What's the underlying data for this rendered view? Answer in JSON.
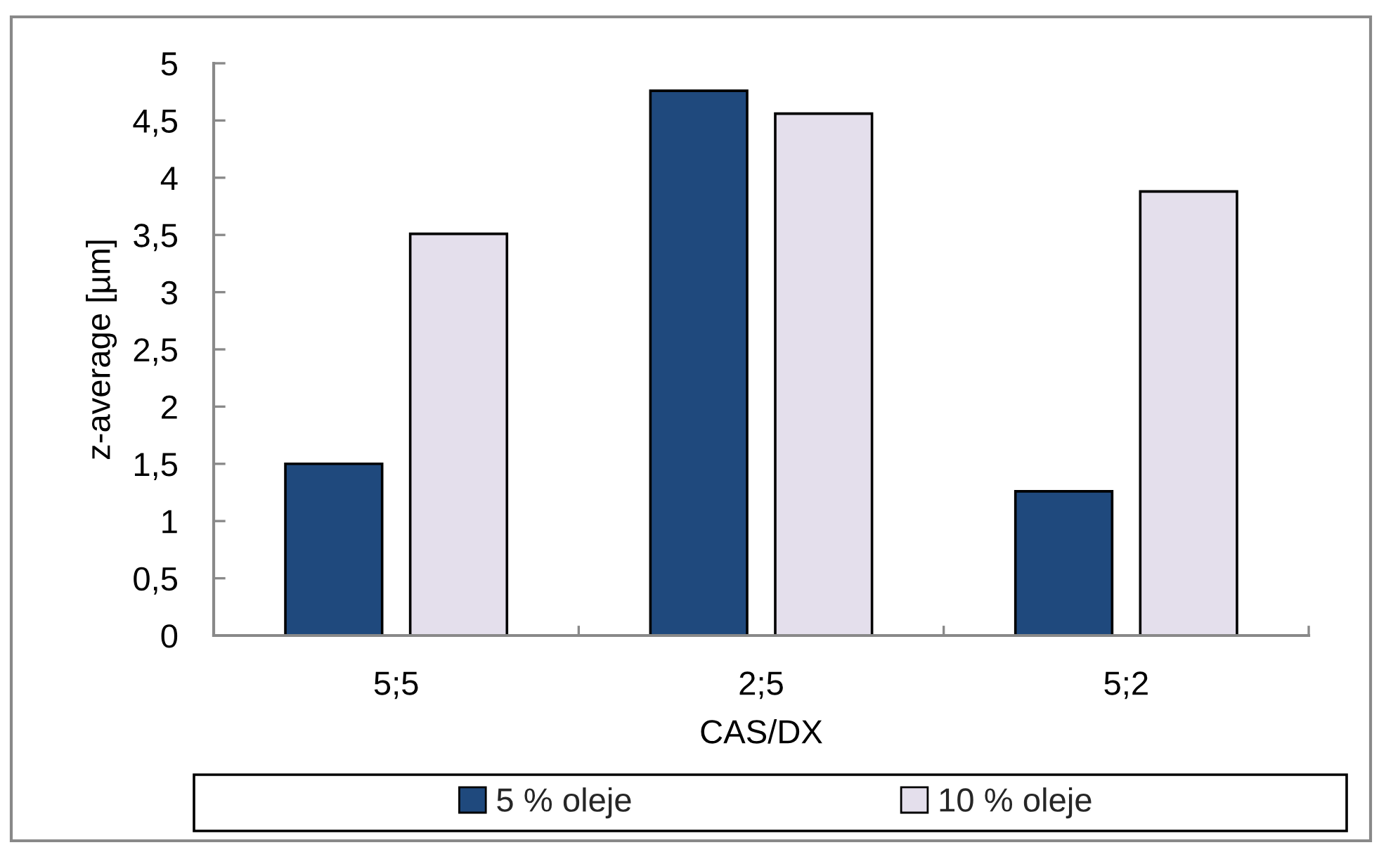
{
  "chart_data": {
    "type": "bar",
    "xlabel": "CAS/DX",
    "ylabel": "z-average [µm]",
    "categories": [
      "5;5",
      "2;5",
      "5;2"
    ],
    "series": [
      {
        "name": "5 % oleje",
        "color": "#1f497d",
        "values": [
          1.5,
          4.76,
          1.26
        ]
      },
      {
        "name": "10 % oleje",
        "color": "#e4dfec",
        "values": [
          3.51,
          4.56,
          3.88
        ]
      }
    ],
    "ylim": [
      0,
      5
    ],
    "yticks": [
      0,
      {
        "value": 0.5,
        "label": "0,5"
      },
      1,
      {
        "value": 1.5,
        "label": "1,5"
      },
      2,
      {
        "value": 2.5,
        "label": "2,5"
      },
      3,
      {
        "value": 3.5,
        "label": "3,5"
      },
      4,
      {
        "value": 4.5,
        "label": "4,5"
      },
      5
    ],
    "grid": false,
    "legend": "bottom"
  }
}
